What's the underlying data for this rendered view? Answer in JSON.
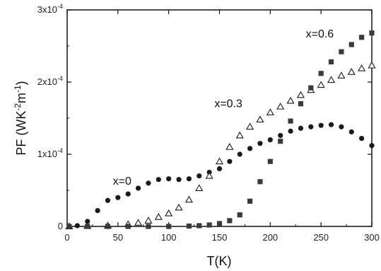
{
  "chart_data": {
    "type": "scatter",
    "xlabel": "T(K)",
    "ylabel": "PF (WK-2m-1)",
    "ylabel_parts": {
      "main": "PF (WK",
      "sup1": "-2",
      "mid": "m",
      "sup2": "-1",
      "end": ")"
    },
    "xlim": [
      0,
      300
    ],
    "ylim": [
      0,
      0.0003
    ],
    "x_ticks": [
      0,
      50,
      100,
      150,
      200,
      250,
      300
    ],
    "x_tick_labels": [
      "0",
      "50",
      "100",
      "150",
      "200",
      "250",
      "300"
    ],
    "y_ticks": [
      0,
      0.0001,
      0.0002,
      0.0003
    ],
    "y_tick_labels": [
      {
        "base": "0",
        "exp": ""
      },
      {
        "base": "1x10",
        "exp": "-4"
      },
      {
        "base": "2x10",
        "exp": "-4"
      },
      {
        "base": "3x10",
        "exp": "-4"
      }
    ],
    "grid": false,
    "series": [
      {
        "name": "x=0",
        "marker": "filled-circle",
        "color": "#1a1a1a",
        "points": [
          [
            2,
            0
          ],
          [
            10,
            1e-06
          ],
          [
            20,
            7e-06
          ],
          [
            30,
            2.2e-05
          ],
          [
            40,
            3.6e-05
          ],
          [
            50,
            4e-05
          ],
          [
            60,
            4.5e-05
          ],
          [
            70,
            5.3e-05
          ],
          [
            80,
            6e-05
          ],
          [
            90,
            6.5e-05
          ],
          [
            100,
            6.6e-05
          ],
          [
            110,
            6.5e-05
          ],
          [
            120,
            6.6e-05
          ],
          [
            130,
            7e-05
          ],
          [
            140,
            7.5e-05
          ],
          [
            150,
            8e-05
          ],
          [
            160,
            9e-05
          ],
          [
            170,
            0.0001
          ],
          [
            180,
            0.000108
          ],
          [
            190,
            0.000115
          ],
          [
            200,
            0.00012
          ],
          [
            210,
            0.000126
          ],
          [
            220,
            0.000132
          ],
          [
            230,
            0.000136
          ],
          [
            240,
            0.000138
          ],
          [
            250,
            0.00014
          ],
          [
            260,
            0.000141
          ],
          [
            270,
            0.000138
          ],
          [
            280,
            0.000131
          ],
          [
            290,
            0.000122
          ],
          [
            300,
            0.000112
          ]
        ]
      },
      {
        "name": "x=0.3",
        "marker": "open-triangle",
        "color": "#1a1a1a",
        "points": [
          [
            2,
            0
          ],
          [
            20,
            5e-07
          ],
          [
            40,
            1e-06
          ],
          [
            60,
            3e-06
          ],
          [
            70,
            5e-06
          ],
          [
            80,
            8e-06
          ],
          [
            90,
            1.3e-05
          ],
          [
            100,
            1.8e-05
          ],
          [
            110,
            2.6e-05
          ],
          [
            120,
            3.7e-05
          ],
          [
            130,
            5.3e-05
          ],
          [
            140,
            7e-05
          ],
          [
            150,
            9e-05
          ],
          [
            160,
            0.00011
          ],
          [
            170,
            0.000126
          ],
          [
            180,
            0.000138
          ],
          [
            190,
            0.000148
          ],
          [
            200,
            0.000158
          ],
          [
            210,
            0.000166
          ],
          [
            220,
            0.000174
          ],
          [
            230,
            0.000182
          ],
          [
            240,
            0.000189
          ],
          [
            250,
            0.000196
          ],
          [
            260,
            0.000203
          ],
          [
            270,
            0.000209
          ],
          [
            280,
            0.000214
          ],
          [
            290,
            0.000219
          ],
          [
            300,
            0.000223
          ]
        ]
      },
      {
        "name": "x=0.6",
        "marker": "filled-square",
        "color": "#3a3a3a",
        "points": [
          [
            2,
            0
          ],
          [
            20,
            0
          ],
          [
            40,
            0
          ],
          [
            60,
            0
          ],
          [
            80,
            0
          ],
          [
            100,
            0
          ],
          [
            120,
            5e-07
          ],
          [
            130,
            1e-06
          ],
          [
            140,
            2e-06
          ],
          [
            150,
            4e-06
          ],
          [
            160,
            8e-06
          ],
          [
            170,
            1.6e-05
          ],
          [
            180,
            3.5e-05
          ],
          [
            190,
            6.2e-05
          ],
          [
            200,
            9e-05
          ],
          [
            210,
            0.000118
          ],
          [
            220,
            0.000146
          ],
          [
            230,
            0.00017
          ],
          [
            240,
            0.000192
          ],
          [
            250,
            0.000212
          ],
          [
            260,
            0.000228
          ],
          [
            270,
            0.000242
          ],
          [
            280,
            0.000252
          ],
          [
            290,
            0.000262
          ],
          [
            300,
            0.000268
          ]
        ]
      }
    ],
    "annotations": [
      {
        "text": "x=0",
        "series": 0,
        "at": [
          45,
          5.8e-05
        ]
      },
      {
        "text": "x=0.3",
        "series": 1,
        "at": [
          145,
          0.000165
        ]
      },
      {
        "text": "x=0.6",
        "series": 2,
        "at": [
          235,
          0.000262
        ]
      }
    ]
  }
}
